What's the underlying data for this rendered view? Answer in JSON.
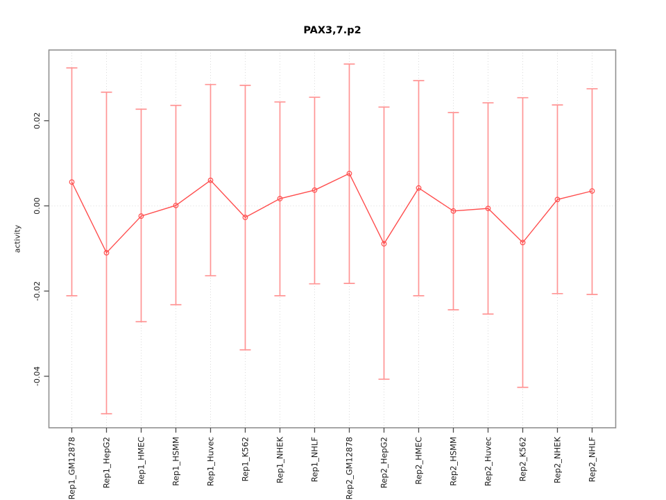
{
  "title": "PAX3,7.p2",
  "y_axis_title": "activity",
  "chart_data": {
    "type": "line",
    "title": "PAX3,7.p2",
    "xlabel": "",
    "ylabel": "activity",
    "legend": "none",
    "grid": "vertical dotted gridline at every category plus dotted horizontal line at y=0",
    "point_style": "open circle with vertical error bars and end caps",
    "ylim": [
      -0.0521,
      0.0366
    ],
    "yticks": [
      {
        "label": "0.02",
        "value": 0.02
      },
      {
        "label": "0.00",
        "value": 0.0
      },
      {
        "label": "-0.02",
        "value": -0.02
      },
      {
        "label": "-0.04",
        "value": -0.04
      }
    ],
    "categories": [
      "Rep1_GM12878",
      "Rep1_HepG2",
      "Rep1_HMEC",
      "Rep1_HSMM",
      "Rep1_Huvec",
      "Rep1_K562",
      "Rep1_NHEK",
      "Rep1_NHLF",
      "Rep2_GM12878",
      "Rep2_HepG2",
      "Rep2_HMEC",
      "Rep2_HSMM",
      "Rep2_Huvec",
      "Rep2_K562",
      "Rep2_NHEK",
      "Rep2_NHLF"
    ],
    "series": [
      {
        "name": "activity",
        "values": [
          0.0056,
          -0.011,
          -0.0024,
          0.0001,
          0.006,
          -0.0027,
          0.0017,
          0.0037,
          0.0076,
          -0.0089,
          0.0042,
          -0.0012,
          -0.0006,
          -0.0086,
          0.0015,
          0.0035
        ],
        "upper": [
          0.0324,
          0.0267,
          0.0227,
          0.0236,
          0.0285,
          0.0283,
          0.0244,
          0.0255,
          0.0333,
          0.0232,
          0.0294,
          0.0219,
          0.0242,
          0.0254,
          0.0237,
          0.0275
        ],
        "lower": [
          -0.0211,
          -0.0488,
          -0.0272,
          -0.0232,
          -0.0164,
          -0.0338,
          -0.0211,
          -0.0183,
          -0.0182,
          -0.0407,
          -0.0211,
          -0.0244,
          -0.0254,
          -0.0426,
          -0.0206,
          -0.0208
        ]
      }
    ],
    "colors": {
      "error_bar": "#ff9494",
      "line": "#ff4d4d",
      "point": "#ff4d4d",
      "grid": "#d9d9d9",
      "box": "#8f8f8f",
      "tick": "#4a4a4a",
      "text": "#1a1a1a",
      "background": "#ffffff"
    }
  }
}
